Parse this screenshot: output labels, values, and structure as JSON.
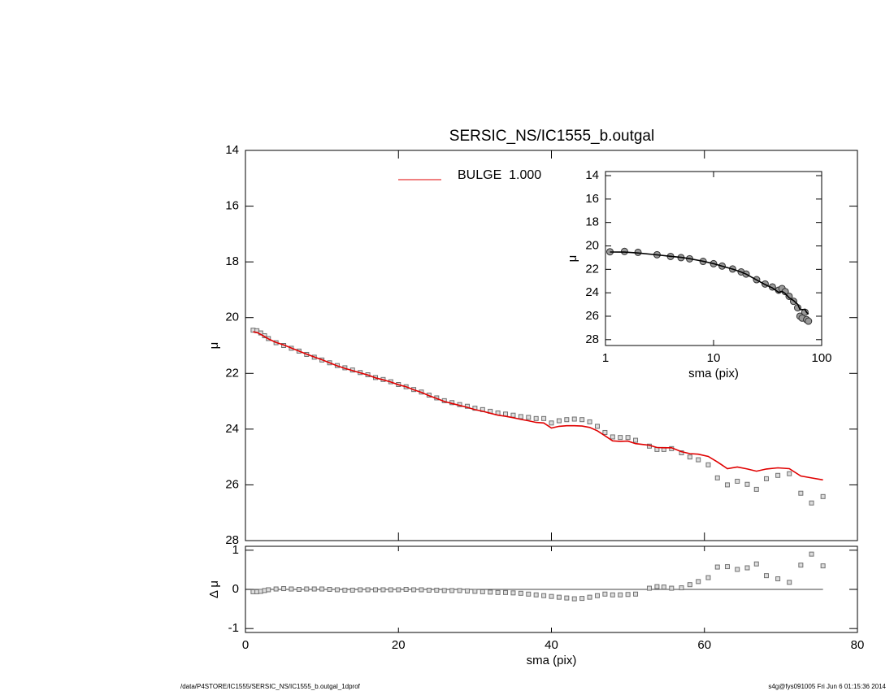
{
  "chart_data": [
    {
      "type": "scatter",
      "title": "SERSIC_NS/IC1555_b.outgal",
      "ylabel": "μ",
      "ylim": [
        14,
        28
      ],
      "yticks": [
        14,
        16,
        18,
        20,
        22,
        24,
        26,
        28
      ],
      "y_inverted": true,
      "legend": "top",
      "x": [
        1,
        1.5,
        2,
        2.5,
        3,
        4,
        5,
        6,
        7,
        8,
        9,
        10,
        11,
        12,
        13,
        14,
        15,
        16,
        17,
        18,
        19,
        20,
        21,
        22,
        23,
        24,
        25,
        26,
        27,
        28,
        29,
        30,
        31,
        32,
        33,
        34,
        35,
        36,
        37,
        38,
        39,
        40,
        41,
        42,
        43,
        44,
        45,
        46,
        47,
        48,
        49,
        50,
        51,
        52.8,
        53.8,
        54.7,
        55.7,
        57,
        58.1,
        59.2,
        60.5,
        61.7,
        63,
        64.3,
        65.6,
        66.8,
        68.1,
        69.6,
        71.1,
        72.6,
        74,
        75.5
      ],
      "series": [
        {
          "color": "#707070",
          "marker": "square",
          "values": [
            20.45,
            20.47,
            20.55,
            20.65,
            20.75,
            20.9,
            21.0,
            21.1,
            21.2,
            21.32,
            21.42,
            21.52,
            21.62,
            21.72,
            21.8,
            21.88,
            21.97,
            22.05,
            22.15,
            22.22,
            22.3,
            22.4,
            22.48,
            22.58,
            22.67,
            22.78,
            22.88,
            22.98,
            23.05,
            23.12,
            23.18,
            23.25,
            23.3,
            23.36,
            23.42,
            23.46,
            23.5,
            23.55,
            23.58,
            23.62,
            23.62,
            23.78,
            23.7,
            23.66,
            23.64,
            23.66,
            23.74,
            23.9,
            24.12,
            24.28,
            24.3,
            24.3,
            24.4,
            24.61,
            24.73,
            24.73,
            24.7,
            24.85,
            25.0,
            25.1,
            25.28,
            25.75,
            26.0,
            25.87,
            25.98,
            26.16,
            25.78,
            25.66,
            25.6,
            26.3,
            26.65,
            26.42
          ]
        },
        {
          "name": "BULGE  1.000",
          "color": "#e00000",
          "marker": "line",
          "values": [
            20.51,
            20.53,
            20.6,
            20.68,
            20.76,
            20.89,
            20.98,
            21.09,
            21.2,
            21.31,
            21.41,
            21.51,
            21.62,
            21.73,
            21.82,
            21.9,
            21.98,
            22.06,
            22.16,
            22.23,
            22.31,
            22.41,
            22.48,
            22.59,
            22.68,
            22.8,
            22.9,
            23.01,
            23.08,
            23.15,
            23.22,
            23.3,
            23.36,
            23.43,
            23.5,
            23.54,
            23.59,
            23.65,
            23.7,
            23.76,
            23.78,
            23.96,
            23.9,
            23.88,
            23.88,
            23.89,
            23.94,
            24.06,
            24.24,
            24.42,
            24.44,
            24.43,
            24.52,
            24.58,
            24.66,
            24.67,
            24.67,
            24.81,
            24.88,
            24.9,
            24.98,
            25.18,
            25.42,
            25.36,
            25.43,
            25.51,
            25.43,
            25.39,
            25.42,
            25.68,
            25.75,
            25.82
          ]
        }
      ]
    },
    {
      "type": "scatter",
      "xlabel": "sma (pix)",
      "ylabel": "Δ μ",
      "xlim": [
        0,
        80
      ],
      "xticks": [
        0,
        20,
        40,
        60,
        80
      ],
      "ylim": [
        -1.1,
        1.1
      ],
      "yticks": [
        -1,
        0,
        1
      ],
      "series": [
        {
          "color": "#707070",
          "marker": "square",
          "values": [
            -0.06,
            -0.06,
            -0.05,
            -0.03,
            -0.01,
            0.01,
            0.02,
            0.01,
            0,
            0.01,
            0.01,
            0.01,
            0,
            -0.01,
            -0.02,
            -0.02,
            -0.01,
            -0.01,
            -0.01,
            -0.01,
            -0.01,
            -0.01,
            0,
            -0.01,
            -0.01,
            -0.02,
            -0.02,
            -0.03,
            -0.03,
            -0.03,
            -0.04,
            -0.05,
            -0.06,
            -0.07,
            -0.08,
            -0.08,
            -0.09,
            -0.1,
            -0.12,
            -0.14,
            -0.16,
            -0.18,
            -0.2,
            -0.22,
            -0.24,
            -0.23,
            -0.2,
            -0.16,
            -0.12,
            -0.14,
            -0.14,
            -0.13,
            -0.12,
            0.03,
            0.07,
            0.06,
            0.03,
            0.04,
            0.12,
            0.2,
            0.3,
            0.57,
            0.58,
            0.51,
            0.55,
            0.65,
            0.35,
            0.27,
            0.18,
            0.62,
            0.9,
            0.6
          ]
        }
      ]
    },
    {
      "type": "scatter",
      "xlabel": "sma (pix)",
      "ylabel": "μ",
      "xscale": "log",
      "xlim": [
        1,
        100
      ],
      "xticks": [
        1,
        10,
        100
      ],
      "ylim": [
        13.65,
        28.5
      ],
      "yticks": [
        14,
        16,
        18,
        20,
        22,
        24,
        26,
        28
      ],
      "y_inverted": true,
      "x": [
        1.1,
        1.5,
        2,
        3,
        4,
        5,
        6,
        8,
        10,
        12,
        15,
        18,
        20,
        25,
        30,
        35,
        40,
        43,
        46,
        50,
        55,
        60,
        63,
        66,
        70,
        72.6,
        75.5
      ],
      "series": [
        {
          "color": "#999999",
          "marker": "circle",
          "values": [
            20.5,
            20.47,
            20.55,
            20.75,
            20.9,
            21.0,
            21.1,
            21.32,
            21.52,
            21.72,
            21.97,
            22.22,
            22.4,
            22.88,
            23.25,
            23.5,
            23.78,
            23.64,
            23.9,
            24.3,
            24.73,
            25.28,
            26.0,
            26.16,
            25.66,
            26.3,
            26.42
          ]
        },
        {
          "color": "#000000",
          "marker": "line",
          "values": [
            20.52,
            20.53,
            20.6,
            20.76,
            20.89,
            20.98,
            21.09,
            21.31,
            21.51,
            21.73,
            21.98,
            22.23,
            22.41,
            22.9,
            23.3,
            23.59,
            23.96,
            23.88,
            24.06,
            24.43,
            24.67,
            24.98,
            25.42,
            25.43,
            25.42,
            25.68,
            25.82
          ]
        }
      ]
    }
  ],
  "footer": {
    "left": "/data/P4STORE/IC1555/SERSIC_NS/IC1555_b.outgal_1dprof",
    "right": "s4g@fys091005  Fri Jun  6 01:15:36 2014"
  }
}
